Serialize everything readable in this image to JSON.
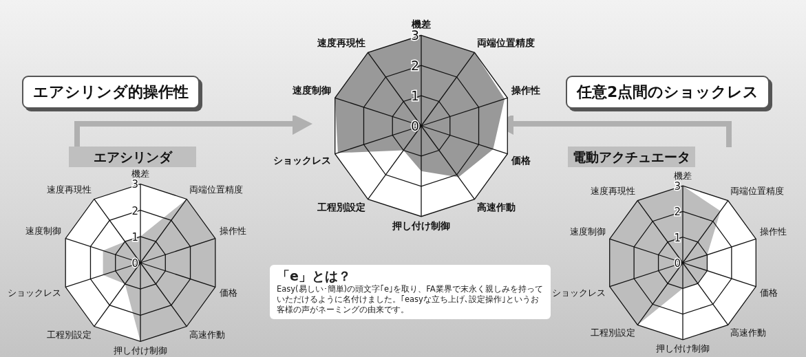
{
  "chart_data": [
    {
      "type": "radar",
      "categories": [
        "機差",
        "両端位置精度",
        "操作性",
        "価格",
        "高速作動",
        "押し付け制御",
        "工程別設定",
        "ショックレス",
        "速度制御",
        "速度再現性"
      ],
      "series": [
        {
          "color": "#999999",
          "values": [
            3,
            3,
            2.9,
            2.5,
            2.1,
            1.5,
            1,
            2.9,
            3,
            3
          ]
        }
      ],
      "ylim": [
        0,
        3
      ],
      "yticks": [
        0,
        1,
        2,
        3
      ],
      "grid": true,
      "annotations": [
        "エアシリンダ的操作性",
        "任意2点間のショックレス",
        "「e」とは？",
        "Easy(易しい･簡単)の頭文字｢e｣を取り、FA業界で末永く親しみを持っていただけるように名付けました。｢easyな立ち上げ､設定操作｣というお客様の声がネーミングの由来です。"
      ]
    },
    {
      "type": "radar",
      "title": "エアシリンダ",
      "categories": [
        "機差",
        "両端位置精度",
        "操作性",
        "価格",
        "高速作動",
        "押し付け制御",
        "工程別設定",
        "ショックレス",
        "速度制御",
        "速度再現性"
      ],
      "series": [
        {
          "color": "#bdbdbd",
          "values": [
            1,
            3,
            3,
            3,
            3,
            3,
            1,
            1.5,
            1.5,
            1
          ]
        }
      ],
      "ylim": [
        0,
        3
      ],
      "yticks": [
        0,
        1,
        2,
        3
      ],
      "grid": true
    },
    {
      "type": "radar",
      "title": "電動アクチュエータ",
      "categories": [
        "機差",
        "両端位置精度",
        "操作性",
        "価格",
        "高速作動",
        "押し付け制御",
        "工程別設定",
        "ショックレス",
        "速度制御",
        "速度再現性"
      ],
      "series": [
        {
          "color": "#bdbdbd",
          "values": [
            3,
            2.5,
            1,
            1,
            1,
            1,
            3,
            3,
            3,
            3
          ]
        }
      ],
      "ylim": [
        0,
        3
      ],
      "yticks": [
        0,
        1,
        2,
        3
      ],
      "grid": true
    }
  ]
}
